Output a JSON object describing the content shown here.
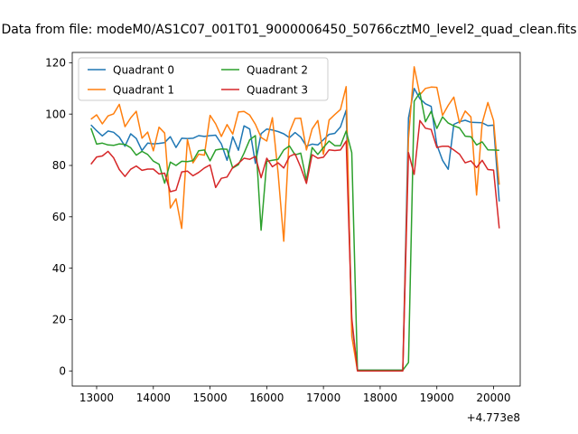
{
  "chart_data": {
    "type": "line",
    "title": "Data from file: modeM0/AS1C07_001T01_9000006450_50766cztM0_level2_quad_clean.fits",
    "xlabel": "",
    "ylabel": "",
    "x_offset_label": "+4.773e8",
    "x_offset": 477300000,
    "xlim": [
      12570,
      20470
    ],
    "ylim": [
      -5.9,
      124.0
    ],
    "x_ticks": [
      13000,
      14000,
      15000,
      16000,
      17000,
      18000,
      19000,
      20000
    ],
    "x_tick_labels": [
      "13000",
      "14000",
      "15000",
      "16000",
      "17000",
      "18000",
      "19000",
      "20000"
    ],
    "y_ticks": [
      0,
      20,
      40,
      60,
      80,
      100,
      120
    ],
    "y_tick_labels": [
      "0",
      "20",
      "40",
      "60",
      "80",
      "100",
      "120"
    ],
    "grid": false,
    "legend_position": "top-left",
    "legend_columns": 2,
    "x": [
      12900,
      13000,
      13100,
      13200,
      13300,
      13400,
      13500,
      13600,
      13700,
      13800,
      13900,
      14000,
      14100,
      14200,
      14300,
      14400,
      14500,
      14600,
      14700,
      14800,
      14900,
      15000,
      15100,
      15200,
      15300,
      15400,
      15500,
      15600,
      15700,
      15800,
      15900,
      16000,
      16100,
      16200,
      16300,
      16400,
      16500,
      16600,
      16700,
      16800,
      16900,
      17000,
      17100,
      17200,
      17300,
      17400,
      17500,
      17600,
      17700,
      17800,
      17900,
      18000,
      18100,
      18200,
      18300,
      18400,
      18500,
      18600,
      18700,
      18800,
      18900,
      19000,
      19100,
      19200,
      19300,
      19400,
      19500,
      19600,
      19700,
      19800,
      19900,
      20000,
      20100
    ],
    "series": [
      {
        "name": "Quadrant 0",
        "color": "#1f77b4",
        "values": [
          95.8,
          93.5,
          91.5,
          93.4,
          92.9,
          91.0,
          87.5,
          92.3,
          90.5,
          85.8,
          88.7,
          88.4,
          88.6,
          88.9,
          91.2,
          87.0,
          90.6,
          90.5,
          90.6,
          91.6,
          91.3,
          91.6,
          91.8,
          88.4,
          82.0,
          91.2,
          85.9,
          95.4,
          94.2,
          80.8,
          92.4,
          94.2,
          93.8,
          93.2,
          92.3,
          90.8,
          92.8,
          91.0,
          87.5,
          88.3,
          88.0,
          90.0,
          92.1,
          92.5,
          95.0,
          101.5,
          19.0,
          0.3,
          0.3,
          0.3,
          0.3,
          0.3,
          0.3,
          0.3,
          0.3,
          0.3,
          98.5,
          110.0,
          106.0,
          104.0,
          103.0,
          88.0,
          82.0,
          78.5,
          96.0,
          97.0,
          97.6,
          96.8,
          96.7,
          96.6,
          95.5,
          95.7,
          66.0
        ]
      },
      {
        "name": "Quadrant 1",
        "color": "#ff7f0e",
        "values": [
          98.0,
          99.7,
          96.2,
          99.3,
          100.1,
          103.8,
          95.1,
          98.5,
          101.1,
          90.6,
          93.0,
          85.7,
          94.9,
          92.6,
          63.4,
          67.0,
          55.5,
          90.1,
          81.0,
          84.4,
          84.0,
          99.5,
          96.2,
          91.3,
          95.9,
          92.2,
          100.8,
          101.0,
          99.6,
          96.0,
          90.9,
          89.5,
          98.6,
          77.1,
          50.5,
          93.0,
          98.3,
          98.4,
          86.0,
          94.2,
          97.5,
          84.3,
          97.7,
          99.8,
          101.8,
          110.7,
          13.5,
          0.1,
          0.1,
          0.1,
          0.1,
          0.1,
          0.1,
          0.1,
          0.1,
          0.1,
          90.5,
          118.4,
          107.5,
          110.0,
          110.5,
          110.4,
          99.5,
          103.4,
          106.6,
          96.5,
          101.2,
          98.9,
          68.5,
          96.5,
          104.5,
          97.5,
          72.5
        ]
      },
      {
        "name": "Quadrant 2",
        "color": "#2ca02c",
        "values": [
          94.5,
          88.3,
          88.7,
          88.0,
          87.8,
          88.4,
          88.2,
          86.9,
          84.0,
          85.5,
          84.3,
          81.7,
          80.5,
          73.1,
          81.3,
          80.0,
          81.6,
          81.5,
          81.9,
          85.7,
          86.0,
          81.8,
          86.0,
          86.4,
          86.3,
          79.0,
          80.3,
          84.8,
          90.0,
          91.6,
          54.8,
          81.6,
          82.0,
          82.4,
          86.0,
          87.6,
          84.1,
          84.8,
          74.2,
          87.0,
          84.3,
          87.0,
          89.5,
          87.7,
          87.7,
          93.4,
          85.0,
          0.3,
          0.3,
          0.3,
          0.3,
          0.3,
          0.3,
          0.3,
          0.3,
          0.3,
          3.3,
          105.0,
          108.3,
          97.0,
          101.1,
          94.4,
          98.9,
          96.5,
          95.4,
          94.6,
          91.4,
          91.2,
          88.0,
          89.2,
          86.1,
          86.0,
          85.9
        ]
      },
      {
        "name": "Quadrant 3",
        "color": "#d62728",
        "values": [
          80.5,
          83.3,
          83.7,
          85.5,
          83.0,
          78.4,
          75.7,
          78.5,
          79.8,
          78.1,
          78.6,
          78.6,
          76.7,
          77.0,
          69.8,
          70.4,
          77.5,
          77.8,
          76.0,
          77.3,
          79.0,
          80.2,
          71.4,
          75.0,
          75.5,
          79.2,
          80.8,
          82.8,
          82.4,
          83.5,
          75.2,
          82.8,
          79.5,
          81.0,
          79.0,
          83.5,
          84.5,
          79.3,
          73.0,
          84.2,
          82.8,
          83.2,
          86.1,
          85.8,
          86.0,
          89.5,
          20.5,
          0.0,
          0.0,
          0.0,
          0.0,
          0.0,
          0.0,
          0.0,
          0.0,
          0.0,
          85.0,
          76.5,
          97.5,
          94.5,
          94.0,
          87.0,
          87.5,
          87.5,
          86.0,
          84.4,
          81.0,
          81.8,
          79.2,
          82.0,
          78.4,
          78.2,
          55.5
        ]
      }
    ]
  }
}
